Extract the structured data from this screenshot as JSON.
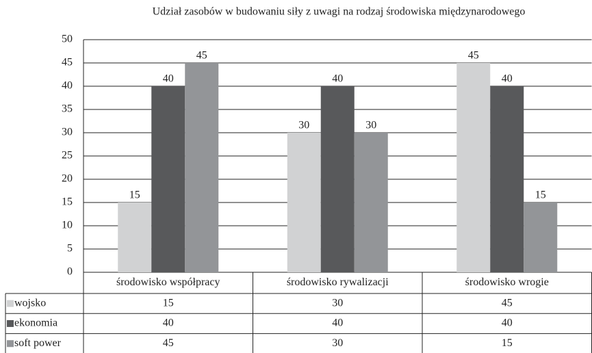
{
  "chart_data": {
    "type": "bar",
    "title": "Udział zasobów w budowaniu siły z uwagi na rodzaj środowiska międzynarodowego",
    "categories": [
      "środowisko współpracy",
      "środowisko rywalizacji",
      "środowisko wrogie"
    ],
    "series": [
      {
        "name": "wojsko",
        "color": "#d1d2d3",
        "values": [
          15,
          30,
          45
        ]
      },
      {
        "name": "ekonomia",
        "color": "#58595b",
        "values": [
          40,
          40,
          40
        ]
      },
      {
        "name": "soft power",
        "color": "#939598",
        "values": [
          45,
          30,
          15
        ]
      }
    ],
    "ylim": [
      0,
      50
    ],
    "yticks": [
      0,
      5,
      10,
      15,
      20,
      25,
      30,
      35,
      40,
      45,
      50
    ],
    "grid": true,
    "data_table": true
  }
}
